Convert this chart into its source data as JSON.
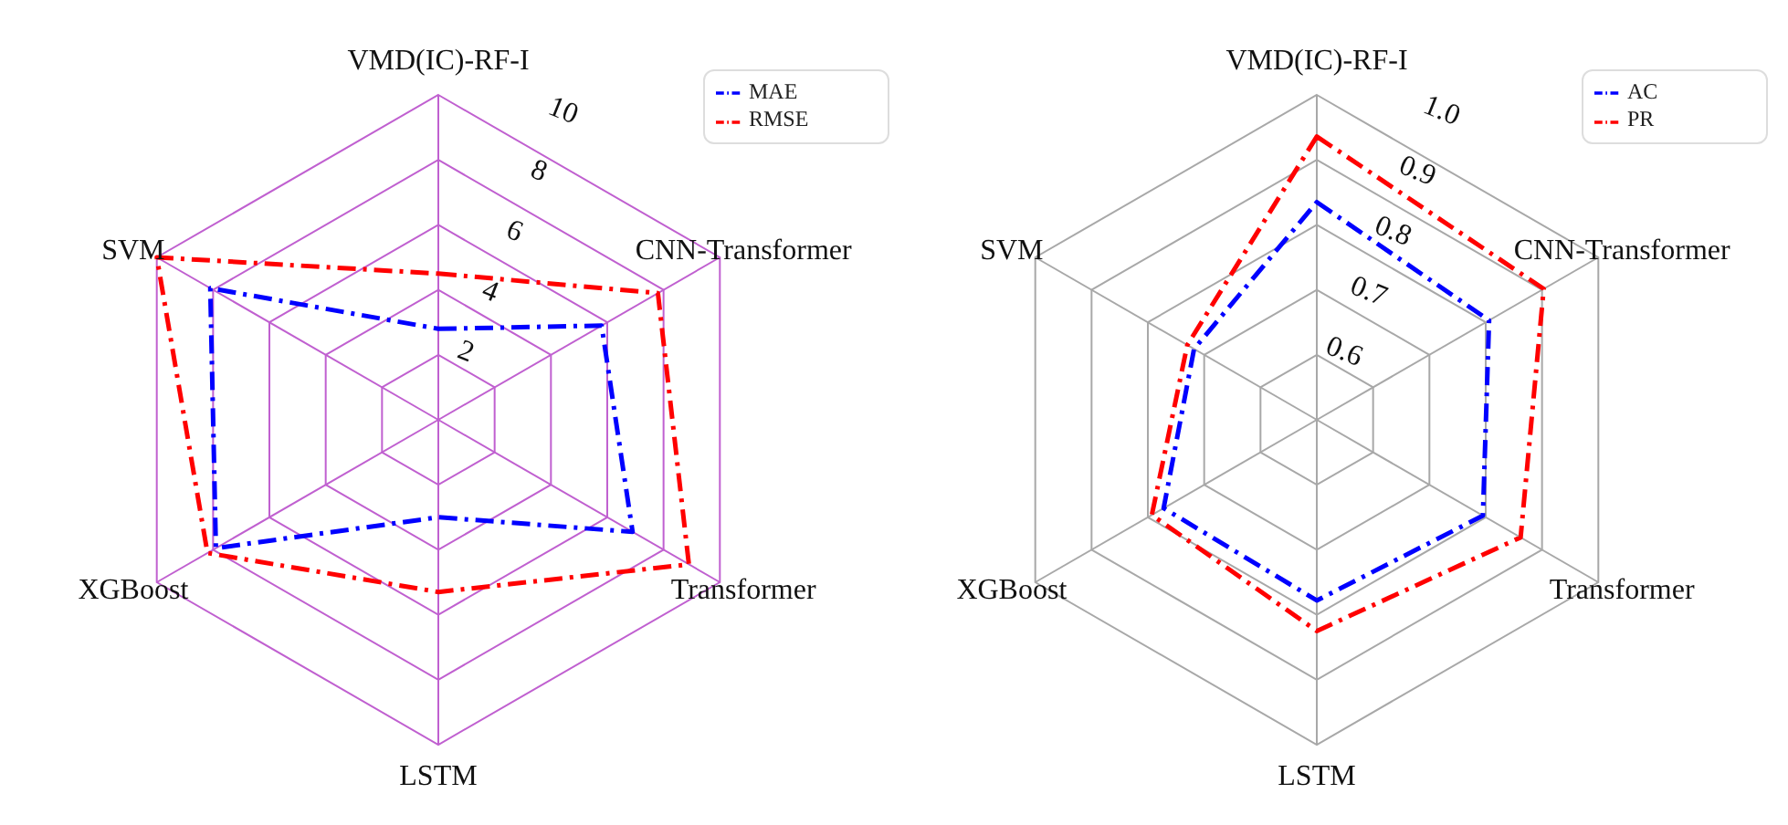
{
  "chart_data": [
    {
      "type": "radar",
      "categories": [
        "VMD(IC)-RF-I",
        "CNN-Transformer",
        "Transformer",
        "LSTM",
        "XGBoost",
        "SVM"
      ],
      "series": [
        {
          "name": "MAE",
          "color": "#0000ff",
          "values": [
            2.8,
            5.8,
            6.9,
            3.0,
            7.9,
            8.1
          ]
        },
        {
          "name": "RMSE",
          "color": "#ff0000",
          "values": [
            4.5,
            7.8,
            8.9,
            5.3,
            8.2,
            10.0
          ]
        }
      ],
      "ylim": [
        0,
        10
      ],
      "yticks": [
        2,
        4,
        6,
        8,
        10
      ],
      "grid": true,
      "legend": "top right",
      "marker": "none",
      "line_style": "dashed"
    },
    {
      "type": "radar",
      "categories": [
        "VMD(IC)-RF-I",
        "CNN-Transformer",
        "Transformer",
        "LSTM",
        "XGBoost",
        "SVM"
      ],
      "series": [
        {
          "name": "AC",
          "color": "#0000ff",
          "values": [
            0.835,
            0.806,
            0.795,
            0.778,
            0.772,
            0.718
          ]
        },
        {
          "name": "PR",
          "color": "#ff0000",
          "values": [
            0.936,
            0.903,
            0.862,
            0.825,
            0.793,
            0.73
          ]
        }
      ],
      "ylim": [
        0.5,
        1.0
      ],
      "yticks": [
        0.6,
        0.7,
        0.8,
        0.9,
        {
          "value": 1.0,
          "label": "1.0"
        }
      ],
      "grid": true,
      "legend": "top right",
      "marker": "none",
      "line_style": "dashed"
    }
  ]
}
